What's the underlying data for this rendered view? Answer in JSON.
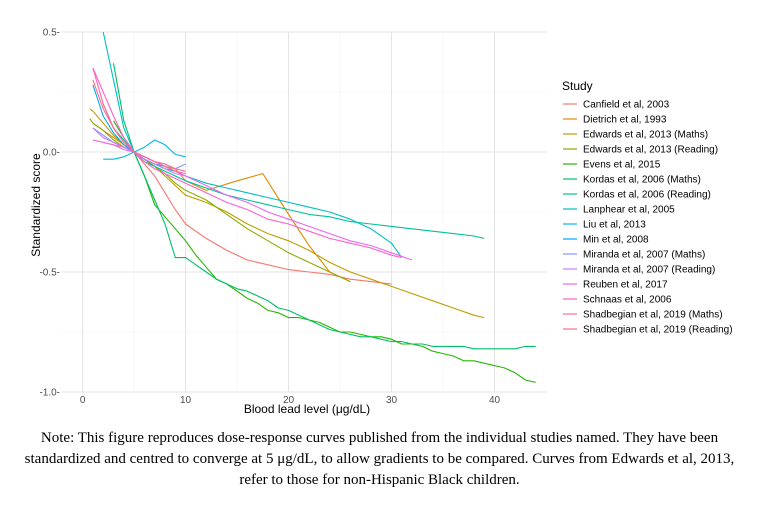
{
  "chart_data": {
    "type": "line",
    "title": "",
    "xlabel": "Blood lead level (μg/dL)",
    "ylabel": "Standardized score",
    "xlim": [
      -2,
      45
    ],
    "ylim": [
      -1.0,
      0.5
    ],
    "xticks": [
      0,
      10,
      20,
      30,
      40
    ],
    "yticks": [
      -1.0,
      -0.5,
      0.0,
      0.5
    ],
    "xtick_labels": [
      "0",
      "10",
      "20",
      "30",
      "40"
    ],
    "ytick_labels": [
      "-1.0-",
      "-0.5-",
      "0.0-",
      "0.5-"
    ],
    "grid": true,
    "legend_title": "Study",
    "legend_position": "right",
    "series": [
      {
        "name": "Canfield et al, 2003",
        "color": "#F8766D",
        "x": [
          1,
          2,
          3,
          4,
          5,
          6,
          7,
          8,
          9,
          10,
          12,
          14,
          16,
          18,
          20,
          22,
          24,
          26,
          28,
          30
        ],
        "y": [
          0.05,
          0.04,
          0.03,
          0.02,
          0,
          -0.05,
          -0.1,
          -0.17,
          -0.24,
          -0.3,
          -0.36,
          -0.41,
          -0.45,
          -0.47,
          -0.49,
          -0.5,
          -0.51,
          -0.53,
          -0.54,
          -0.55
        ]
      },
      {
        "name": "Dietrich et al, 1993",
        "color": "#E18A00",
        "x": [
          1,
          2,
          3,
          4,
          5,
          6,
          7,
          8,
          9,
          10,
          12,
          15,
          17.5,
          20,
          22,
          24,
          26
        ],
        "y": [
          0.12,
          0.09,
          0.06,
          0.03,
          0,
          -0.03,
          -0.05,
          -0.06,
          -0.07,
          -0.12,
          -0.16,
          -0.12,
          -0.09,
          -0.26,
          -0.39,
          -0.5,
          -0.54
        ]
      },
      {
        "name": "Edwards et al, 2013 (Maths)",
        "color": "#BE9C00",
        "x": [
          0.7,
          1,
          2,
          3,
          4,
          5,
          6,
          7,
          8,
          9,
          10,
          12,
          14,
          16,
          18,
          20,
          22,
          24,
          26,
          28,
          30,
          32,
          34,
          36,
          38,
          39
        ],
        "y": [
          0.18,
          0.17,
          0.12,
          0.07,
          0.03,
          0,
          -0.03,
          -0.06,
          -0.1,
          -0.14,
          -0.18,
          -0.21,
          -0.25,
          -0.3,
          -0.34,
          -0.37,
          -0.41,
          -0.46,
          -0.5,
          -0.53,
          -0.56,
          -0.59,
          -0.62,
          -0.65,
          -0.68,
          -0.69
        ]
      },
      {
        "name": "Edwards et al, 2013 (Reading)",
        "color": "#8CAB00",
        "x": [
          0.7,
          1,
          2,
          3,
          4,
          5,
          6,
          7,
          8,
          9,
          10,
          12,
          14,
          16,
          18,
          20,
          22,
          24,
          26
        ],
        "y": [
          0.14,
          0.12,
          0.09,
          0.05,
          0.02,
          0,
          -0.03,
          -0.06,
          -0.09,
          -0.13,
          -0.16,
          -0.2,
          -0.26,
          -0.32,
          -0.37,
          -0.42,
          -0.46,
          -0.5,
          -0.54
        ]
      },
      {
        "name": "Evens et al, 2015",
        "color": "#24B700",
        "x": [
          3,
          4,
          5,
          6,
          7,
          8,
          9,
          10,
          11,
          12,
          13,
          14,
          15,
          16,
          17,
          18,
          19,
          20,
          21,
          22,
          23,
          24,
          25,
          26,
          27,
          28,
          29,
          30,
          31,
          32,
          33,
          34,
          35,
          36,
          37,
          38,
          39,
          40,
          41,
          42,
          43,
          44
        ],
        "y": [
          0.13,
          0.06,
          0,
          -0.1,
          -0.22,
          -0.27,
          -0.32,
          -0.37,
          -0.43,
          -0.48,
          -0.53,
          -0.55,
          -0.58,
          -0.61,
          -0.63,
          -0.66,
          -0.67,
          -0.69,
          -0.69,
          -0.7,
          -0.71,
          -0.73,
          -0.75,
          -0.75,
          -0.76,
          -0.77,
          -0.77,
          -0.78,
          -0.8,
          -0.8,
          -0.81,
          -0.83,
          -0.84,
          -0.85,
          -0.87,
          -0.87,
          -0.88,
          -0.89,
          -0.9,
          -0.92,
          -0.95,
          -0.96
        ]
      },
      {
        "name": "Kordas et al, 2006 (Maths)",
        "color": "#00BE67",
        "x": [
          3,
          4,
          5,
          6,
          7,
          8,
          9,
          10,
          11,
          12,
          13,
          14,
          15,
          16,
          17,
          18,
          19,
          20,
          21,
          22,
          23,
          24,
          25,
          26,
          27,
          28,
          29,
          30,
          31,
          32,
          33,
          34,
          35,
          36,
          37,
          38,
          39,
          40,
          41,
          42,
          43,
          44
        ],
        "y": [
          0.37,
          0.13,
          0,
          -0.1,
          -0.2,
          -0.3,
          -0.44,
          -0.44,
          -0.47,
          -0.5,
          -0.53,
          -0.55,
          -0.57,
          -0.58,
          -0.6,
          -0.62,
          -0.65,
          -0.66,
          -0.68,
          -0.7,
          -0.72,
          -0.74,
          -0.75,
          -0.76,
          -0.77,
          -0.77,
          -0.78,
          -0.79,
          -0.79,
          -0.8,
          -0.8,
          -0.81,
          -0.81,
          -0.81,
          -0.81,
          -0.82,
          -0.82,
          -0.82,
          -0.82,
          -0.82,
          -0.81,
          -0.81
        ]
      },
      {
        "name": "Kordas et al, 2006 (Reading)",
        "color": "#00C19A",
        "x": [
          2,
          3,
          4,
          5,
          6,
          7,
          8,
          9,
          10,
          12,
          14,
          16,
          18,
          20,
          22,
          24,
          26,
          28,
          30,
          32,
          34,
          36,
          38,
          39
        ],
        "y": [
          0.2,
          0.1,
          0.05,
          0,
          -0.04,
          -0.06,
          -0.08,
          -0.1,
          -0.12,
          -0.15,
          -0.18,
          -0.2,
          -0.22,
          -0.24,
          -0.26,
          -0.27,
          -0.29,
          -0.3,
          -0.31,
          -0.32,
          -0.33,
          -0.34,
          -0.35,
          -0.36
        ]
      },
      {
        "name": "Lanphear et al, 2005",
        "color": "#00BFC4",
        "x": [
          2,
          3,
          4,
          5,
          6,
          7,
          8,
          9,
          10,
          12,
          14,
          16,
          18,
          20,
          22,
          24,
          26,
          28,
          30,
          31
        ],
        "y": [
          0.5,
          0.3,
          0.1,
          0,
          -0.03,
          -0.05,
          -0.07,
          -0.08,
          -0.1,
          -0.13,
          -0.15,
          -0.17,
          -0.19,
          -0.21,
          -0.23,
          -0.25,
          -0.28,
          -0.32,
          -0.38,
          -0.44
        ]
      },
      {
        "name": "Liu et al, 2013",
        "color": "#00B8E7",
        "x": [
          2,
          3,
          4,
          5,
          6,
          7,
          8,
          9,
          10
        ],
        "y": [
          -0.03,
          -0.03,
          -0.02,
          0,
          0.02,
          0.05,
          0.03,
          -0.01,
          -0.02
        ]
      },
      {
        "name": "Min et al, 2008",
        "color": "#00A9FF",
        "x": [
          1,
          2,
          3,
          4,
          5,
          6,
          7,
          8,
          9
        ],
        "y": [
          0.28,
          0.15,
          0.08,
          0.03,
          0,
          -0.03,
          -0.05,
          -0.06,
          -0.08
        ]
      },
      {
        "name": "Miranda et al, 2007 (Maths)",
        "color": "#8494FF",
        "x": [
          1,
          2,
          3,
          4,
          5,
          6,
          7,
          8,
          9,
          10
        ],
        "y": [
          0.1,
          0.07,
          0.04,
          0.02,
          0,
          -0.02,
          -0.04,
          -0.05,
          -0.07,
          -0.05
        ]
      },
      {
        "name": "Miranda et al, 2007 (Reading)",
        "color": "#C77CFF",
        "x": [
          1,
          2,
          3,
          4,
          5,
          6,
          7,
          8,
          9,
          10
        ],
        "y": [
          0.1,
          0.06,
          0.04,
          0.02,
          0,
          -0.03,
          -0.05,
          -0.07,
          -0.09,
          -0.1
        ]
      },
      {
        "name": "Reuben et al, 2017",
        "color": "#ED68ED",
        "x": [
          1,
          2,
          3,
          4,
          5,
          6,
          7,
          8,
          10,
          12,
          14,
          16,
          18,
          20,
          22,
          24,
          26,
          28,
          30,
          32
        ],
        "y": [
          0.05,
          0.04,
          0.03,
          0.01,
          0,
          -0.02,
          -0.04,
          -0.06,
          -0.1,
          -0.14,
          -0.18,
          -0.21,
          -0.25,
          -0.28,
          -0.31,
          -0.34,
          -0.37,
          -0.39,
          -0.42,
          -0.45
        ]
      },
      {
        "name": "Schnaas et al, 2006",
        "color": "#FF61CC",
        "x": [
          1,
          2,
          3,
          4,
          5,
          6,
          7,
          8,
          10,
          12,
          14,
          16,
          18,
          20,
          22,
          24,
          26,
          28,
          30,
          31
        ],
        "y": [
          0.35,
          0.25,
          0.15,
          0.06,
          0,
          -0.04,
          -0.07,
          -0.09,
          -0.13,
          -0.17,
          -0.21,
          -0.24,
          -0.28,
          -0.3,
          -0.33,
          -0.36,
          -0.38,
          -0.4,
          -0.43,
          -0.44
        ]
      },
      {
        "name": "Shadbegian et al, 2019 (Maths)",
        "color": "#FF67A4",
        "x": [
          1,
          2,
          3,
          4,
          5,
          6,
          7,
          8,
          9,
          10
        ],
        "y": [
          0.35,
          0.2,
          0.1,
          0.04,
          0,
          -0.02,
          -0.04,
          -0.05,
          -0.07,
          -0.08
        ]
      },
      {
        "name": "Shadbegian et al, 2019 (Reading)",
        "color": "#FF6C91",
        "x": [
          1,
          2,
          3,
          4,
          5,
          6,
          7,
          8,
          9,
          10
        ],
        "y": [
          0.3,
          0.18,
          0.1,
          0.04,
          0,
          -0.02,
          -0.04,
          -0.06,
          -0.08,
          -0.09
        ]
      }
    ]
  },
  "note": {
    "text": "Note: This figure reproduces dose-response curves published from the individual studies named. They have been standardized and centred to converge at 5 μg/dL, to allow gradients to be compared. Curves from Edwards et al, 2013, refer to those for non-Hispanic Black children."
  }
}
